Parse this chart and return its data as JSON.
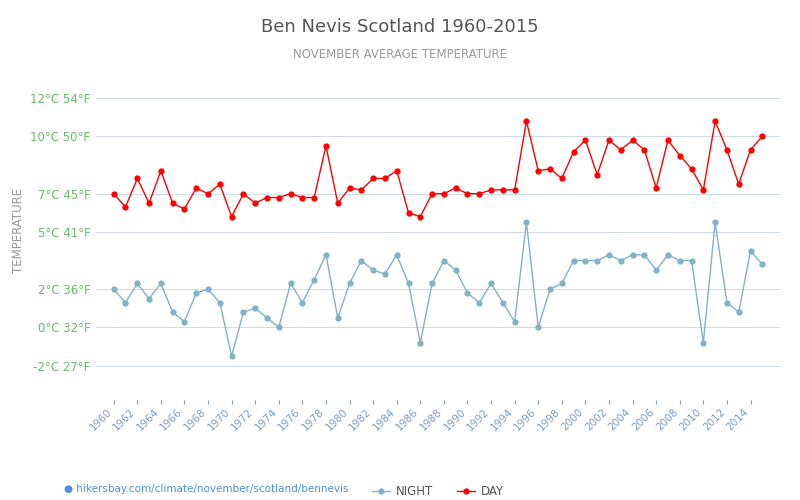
{
  "title": "Ben Nevis Scotland 1960-2015",
  "subtitle": "NOVEMBER AVERAGE TEMPERATURE",
  "ylabel": "TEMPERATURE",
  "xlabel_url": "hikersbay.com/climate/november/scotland/bennevis",
  "years": [
    1960,
    1961,
    1962,
    1963,
    1964,
    1965,
    1966,
    1967,
    1968,
    1969,
    1970,
    1971,
    1972,
    1973,
    1974,
    1975,
    1976,
    1977,
    1978,
    1979,
    1980,
    1981,
    1982,
    1983,
    1984,
    1985,
    1986,
    1987,
    1988,
    1989,
    1990,
    1991,
    1992,
    1993,
    1994,
    1995,
    1996,
    1997,
    1998,
    1999,
    2000,
    2001,
    2002,
    2003,
    2004,
    2005,
    2006,
    2007,
    2008,
    2009,
    2010,
    2011,
    2012,
    2013,
    2014,
    2015
  ],
  "day": [
    7.0,
    6.3,
    7.8,
    6.5,
    8.2,
    6.5,
    6.2,
    7.3,
    7.0,
    7.5,
    5.8,
    7.0,
    6.5,
    6.8,
    6.8,
    7.0,
    6.8,
    6.8,
    9.5,
    6.5,
    7.3,
    7.2,
    7.8,
    7.8,
    8.2,
    6.0,
    5.8,
    7.0,
    7.0,
    7.3,
    7.0,
    7.0,
    7.2,
    7.2,
    7.2,
    10.8,
    8.2,
    8.3,
    7.8,
    9.2,
    9.8,
    8.0,
    9.8,
    9.3,
    9.8,
    9.3,
    7.3,
    9.8,
    9.0,
    8.3,
    7.2,
    10.8,
    9.3,
    7.5,
    9.3,
    10.0
  ],
  "night": [
    2.0,
    1.3,
    2.3,
    1.5,
    2.3,
    0.8,
    0.3,
    1.8,
    2.0,
    1.3,
    -1.5,
    0.8,
    1.0,
    0.5,
    0.0,
    2.3,
    1.3,
    2.5,
    3.8,
    0.5,
    2.3,
    3.5,
    3.0,
    2.8,
    3.8,
    2.3,
    -0.8,
    2.3,
    3.5,
    3.0,
    1.8,
    1.3,
    2.3,
    1.3,
    0.3,
    5.5,
    0.0,
    2.0,
    2.3,
    3.5,
    3.5,
    3.5,
    3.8,
    3.5,
    3.8,
    3.8,
    3.0,
    3.8,
    3.5,
    3.5,
    -0.8,
    5.5,
    1.3,
    0.8,
    4.0,
    3.3
  ],
  "day_color": "#ff0000",
  "night_color": "#7fb3c8",
  "bg_color": "#ffffff",
  "grid_color": "#ccd9e8",
  "title_color": "#555555",
  "subtitle_color": "#999999",
  "ylabel_color": "#999999",
  "ytick_color": "#66bb66",
  "xtick_color": "#7a9cc0",
  "url_color": "#4a90d9",
  "yticks_celsius": [
    -2,
    0,
    2,
    5,
    7,
    10,
    12
  ],
  "yticks_fahrenheit": [
    27,
    32,
    36,
    41,
    45,
    50,
    54
  ],
  "ylim": [
    -3.8,
    14.0
  ],
  "xlim_left": 1958.5,
  "xlim_right": 2016.5,
  "marker_size": 3.5,
  "legend_night_label": "NIGHT",
  "legend_day_label": "DAY",
  "figwidth": 8.0,
  "figheight": 5.0,
  "dpi": 100
}
